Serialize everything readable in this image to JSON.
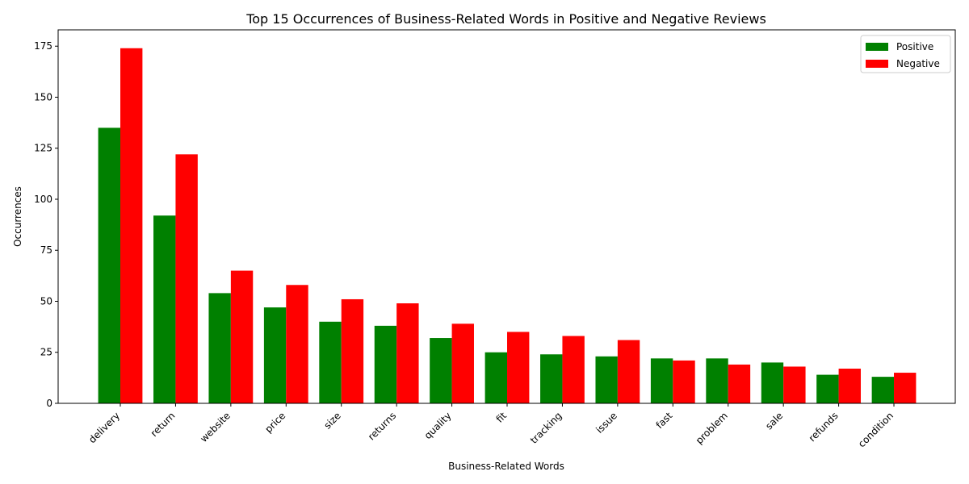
{
  "chart_data": {
    "type": "bar",
    "title": "Top 15 Occurrences of Business-Related Words in Positive and Negative Reviews",
    "xlabel": "Business-Related Words",
    "ylabel": "Occurrences",
    "ylim": [
      0,
      183
    ],
    "yticks": [
      0,
      25,
      50,
      75,
      100,
      125,
      150,
      175
    ],
    "categories": [
      "delivery",
      "return",
      "website",
      "price",
      "size",
      "returns",
      "quality",
      "fit",
      "tracking",
      "issue",
      "fast",
      "problem",
      "sale",
      "refunds",
      "condition"
    ],
    "series": [
      {
        "name": "Positive",
        "color": "#008000",
        "values": [
          135,
          92,
          54,
          47,
          40,
          38,
          32,
          25,
          24,
          23,
          22,
          22,
          20,
          14,
          13
        ]
      },
      {
        "name": "Negative",
        "color": "#ff0000",
        "values": [
          174,
          122,
          65,
          58,
          51,
          49,
          39,
          35,
          33,
          31,
          21,
          19,
          18,
          17,
          15
        ]
      }
    ],
    "legend": {
      "position": "top-right"
    },
    "grid": false
  }
}
